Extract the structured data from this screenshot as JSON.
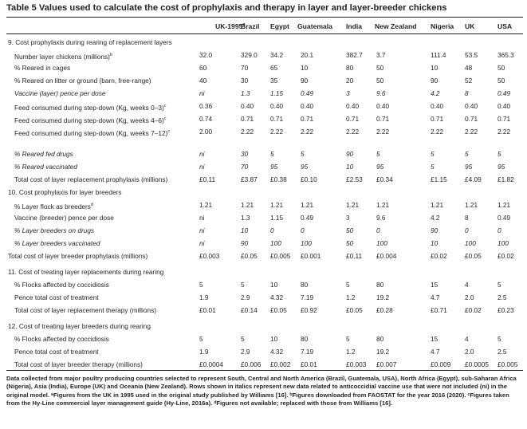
{
  "title": "Table 5  Values used to calculate the cost of prophylaxis and therapy in layer and layer-breeder chickens",
  "headers": [
    {
      "text": "UK-1995",
      "sup": "a"
    },
    {
      "text": "Brazil",
      "sup": ""
    },
    {
      "text": "Egypt",
      "sup": ""
    },
    {
      "text": "Guatemala",
      "sup": ""
    },
    {
      "text": "India",
      "sup": ""
    },
    {
      "text": "New Zealand",
      "sup": ""
    },
    {
      "text": "Nigeria",
      "sup": ""
    },
    {
      "text": "UK",
      "sup": ""
    },
    {
      "text": "USA",
      "sup": ""
    }
  ],
  "rows": [
    {
      "label": "9. Cost prophylaxis during rearing of replacement layers",
      "section": true,
      "values": []
    },
    {
      "label": "Number layer chickens (millions)",
      "sup": "b",
      "values": [
        "32.0",
        "329.0",
        "34.2",
        "20.1",
        "382.7",
        "3.7",
        "111.4",
        "53.5",
        "365.3"
      ]
    },
    {
      "label": "% Reared in cages",
      "values": [
        "60",
        "70",
        "65",
        "10",
        "80",
        "50",
        "10",
        "48",
        "50"
      ]
    },
    {
      "label": "% Reared on litter or ground (barn, free-range)",
      "values": [
        "40",
        "30",
        "35",
        "90",
        "20",
        "50",
        "90",
        "52",
        "50"
      ]
    },
    {
      "label": "Vaccine (layer) pence per dose",
      "italic": true,
      "values": [
        "ni",
        "1.3",
        "1.15",
        "0.49",
        "3",
        "9.6",
        "4.2",
        "8",
        "0.49"
      ]
    },
    {
      "label": "Feed consumed during step-down (Kg, weeks 0–3)",
      "sup": "c",
      "values": [
        "0.36",
        "0.40",
        "0.40",
        "0.40",
        "0.40",
        "0.40",
        "0.40",
        "0.40",
        "0.40"
      ]
    },
    {
      "label": "Feed consumed during step-down (Kg, weeks 4–6)",
      "sup": "c",
      "values": [
        "0.74",
        "0.71",
        "0.71",
        "0.71",
        "0.71",
        "0.71",
        "0.71",
        "0.71",
        "0.71"
      ]
    },
    {
      "label": "Feed consumed during step-down (Kg, weeks 7–12)",
      "sup": "c",
      "tall": true,
      "values": [
        "2.00",
        "2.22",
        "2.22",
        "2.22",
        "2.22",
        "2.22",
        "2.22",
        "2.22",
        "2.22"
      ]
    },
    {
      "label": "% Reared fed drugs",
      "italic": true,
      "values": [
        "ni",
        "30",
        "5",
        "5",
        "90",
        "5",
        "5",
        "5",
        "5"
      ]
    },
    {
      "label": "% Reared vaccinated",
      "italic": true,
      "values": [
        "ni",
        "70",
        "95",
        "95",
        "10",
        "95",
        "5",
        "95",
        "95"
      ]
    },
    {
      "label": "Total cost of layer replacement prophylaxis (millions)",
      "values": [
        "£0.11",
        "£3.87",
        "£0.38",
        "£0.10",
        "£2.53",
        "£0.34",
        "£1.15",
        "£4.09",
        "£1.82"
      ]
    },
    {
      "label": "10. Cost prophylaxis for layer breeders",
      "section": true,
      "values": []
    },
    {
      "label": "% Layer flock as breeders",
      "sup": "d",
      "values": [
        "1.21",
        "1.21",
        "1.21",
        "1.21",
        "1.21",
        "1.21",
        "1.21",
        "1.21",
        "1.21"
      ]
    },
    {
      "label": "Vaccine (breeder) pence per dose",
      "values": [
        "ni",
        "1.3",
        "1.15",
        "0.49",
        "3",
        "9.6",
        "4.2",
        "8",
        "0.49"
      ]
    },
    {
      "label": "% Layer breeders on drugs",
      "italic": true,
      "values": [
        "ni",
        "10",
        "0",
        "0",
        "50",
        "0",
        "90",
        "0",
        "0"
      ]
    },
    {
      "label": "% Layer breeders vaccinated",
      "italic": true,
      "values": [
        "ni",
        "90",
        "100",
        "100",
        "50",
        "100",
        "10",
        "100",
        "100"
      ]
    },
    {
      "label": "Total cost of layer breeder prophylaxis (millions)",
      "flush": true,
      "values": [
        "£0.003",
        "£0.05",
        "£0.005",
        "£0.001",
        "£0.11",
        "£0.004",
        "£0.02",
        "£0.05",
        "£0.02"
      ]
    },
    {
      "label": "11. Cost of treating layer replacements during rearing",
      "section": true,
      "values": []
    },
    {
      "label": "% Flocks affected by coccidiosis",
      "values": [
        "5",
        "5",
        "10",
        "80",
        "5",
        "80",
        "15",
        "4",
        "5"
      ]
    },
    {
      "label": "Pence total cost of treatment",
      "values": [
        "1.9",
        "2.9",
        "4.32",
        "7.19",
        "1.2",
        "19.2",
        "4.7",
        "2.0",
        "2.5"
      ]
    },
    {
      "label": "Total cost of layer replacement therapy (millions)",
      "values": [
        "£0.01",
        "£0.14",
        "£0.05",
        "£0.92",
        "£0.05",
        "£0.28",
        "£0.71",
        "£0.02",
        "£0.23"
      ]
    },
    {
      "label": "12. Cost of treating layer breeders during rearing",
      "section": true,
      "values": []
    },
    {
      "label": "% Flocks affected by coccidiosis",
      "values": [
        "5",
        "5",
        "10",
        "80",
        "5",
        "80",
        "15",
        "4",
        "5"
      ]
    },
    {
      "label": "Pence total cost of treatment",
      "values": [
        "1.9",
        "2.9",
        "4.32",
        "7.19",
        "1.2",
        "19.2",
        "4.7",
        "2.0",
        "2.5"
      ]
    },
    {
      "label": "Total cost of layer breeder therapy (millions)",
      "values": [
        "£0.0004",
        "£0.006",
        "£0.002",
        "£0.01",
        "£0.003",
        "£0.007",
        "£0.009",
        "£0.0005",
        "£0.005"
      ]
    }
  ],
  "footnote": "Data collected from major poultry producing countries selected to represent South, Central and North America (Brazil, Guatemala, USA), North Africa (Egypt), sub-Saharan Africa (Nigeria), Asia (India), Europe (UK) and Oceania (New Zealand). Rows shown in italics represent new data related to anticoccidial vaccine use that were not included (ni) in the original model. ᵃFigures from the UK in 1995 used in the original study published by Williams [16]. ᵇFigures downloaded from FAOSTAT for the year 2016 (2020). ᶜFigures taken from the Hy-Line commercial layer management guide (Hy-Line, 2016a). ᵈFigures not available; replaced with those from Williams [16]."
}
